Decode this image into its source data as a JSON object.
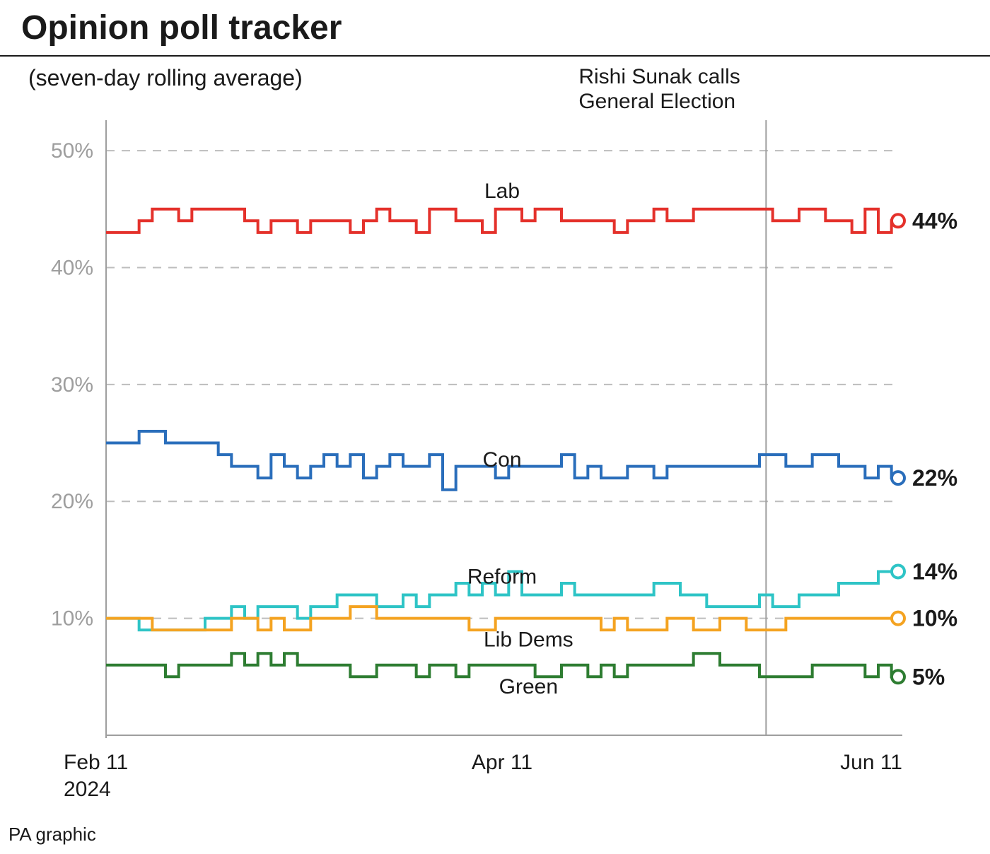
{
  "title": "Opinion poll tracker",
  "subtitle": "(seven-day rolling average)",
  "annotation": {
    "line1": "Rishi Sunak calls",
    "line2": "General Election",
    "x_index": 50
  },
  "source": "PA graphic",
  "chart": {
    "type": "line-step",
    "background_color": "#ffffff",
    "grid_color": "#bdbdbd",
    "axis_color": "#9e9e9e",
    "text_color": "#1a1a1a",
    "ylabel_color": "#9e9e9e",
    "yaxis": {
      "min": 0,
      "max": 52,
      "ticks": [
        10,
        20,
        30,
        40,
        50
      ],
      "tick_suffix": "%",
      "tick_fontsize": 30
    },
    "xaxis": {
      "n_points": 61,
      "labels": [
        {
          "index": 0,
          "line1": "Feb 11",
          "line2": "2024"
        },
        {
          "index": 30,
          "line1": "Apr 11",
          "line2": ""
        },
        {
          "index": 60,
          "line1": "Jun 11",
          "line2": ""
        }
      ],
      "label_fontsize": 30
    },
    "line_width": 4,
    "marker_radius": 9,
    "marker_stroke": 4,
    "series": [
      {
        "name": "Lab",
        "color": "#e4312b",
        "final_label": "44%",
        "label_at_index": 30,
        "values": [
          43,
          43,
          43,
          44,
          45,
          45,
          44,
          45,
          45,
          45,
          45,
          44,
          43,
          44,
          44,
          43,
          44,
          44,
          44,
          43,
          44,
          45,
          44,
          44,
          43,
          45,
          45,
          44,
          44,
          43,
          45,
          45,
          44,
          45,
          45,
          44,
          44,
          44,
          44,
          43,
          44,
          44,
          45,
          44,
          44,
          45,
          45,
          45,
          45,
          45,
          45,
          44,
          44,
          45,
          45,
          44,
          44,
          43,
          45,
          43,
          44
        ]
      },
      {
        "name": "Con",
        "color": "#2a6ebb",
        "final_label": "22%",
        "label_at_index": 30,
        "values": [
          25,
          25,
          25,
          26,
          26,
          25,
          25,
          25,
          25,
          24,
          23,
          23,
          22,
          24,
          23,
          22,
          23,
          24,
          23,
          24,
          22,
          23,
          24,
          23,
          23,
          24,
          21,
          23,
          23,
          23,
          22,
          23,
          23,
          23,
          23,
          24,
          22,
          23,
          22,
          22,
          23,
          23,
          22,
          23,
          23,
          23,
          23,
          23,
          23,
          23,
          24,
          24,
          23,
          23,
          24,
          24,
          23,
          23,
          22,
          23,
          22
        ]
      },
      {
        "name": "Reform",
        "color": "#2ec4c6",
        "final_label": "14%",
        "label_at_index": 30,
        "values": [
          10,
          10,
          10,
          9,
          9,
          9,
          9,
          9,
          10,
          10,
          11,
          10,
          11,
          11,
          11,
          10,
          11,
          11,
          12,
          12,
          12,
          11,
          11,
          12,
          11,
          12,
          12,
          13,
          12,
          13,
          12,
          14,
          12,
          12,
          12,
          13,
          12,
          12,
          12,
          12,
          12,
          12,
          13,
          13,
          12,
          12,
          11,
          11,
          11,
          11,
          12,
          11,
          11,
          12,
          12,
          12,
          13,
          13,
          13,
          14,
          14
        ]
      },
      {
        "name": "Lib Dems",
        "color": "#f4a321",
        "final_label": "10%",
        "label_at_index": 32,
        "label_below": true,
        "values": [
          10,
          10,
          10,
          10,
          9,
          9,
          9,
          9,
          9,
          9,
          10,
          10,
          9,
          10,
          9,
          9,
          10,
          10,
          10,
          11,
          11,
          10,
          10,
          10,
          10,
          10,
          10,
          10,
          9,
          9,
          10,
          10,
          10,
          10,
          10,
          10,
          10,
          10,
          9,
          10,
          9,
          9,
          9,
          10,
          10,
          9,
          9,
          10,
          10,
          9,
          9,
          9,
          10,
          10,
          10,
          10,
          10,
          10,
          10,
          10,
          10
        ]
      },
      {
        "name": "Green",
        "color": "#2e7d32",
        "final_label": "5%",
        "label_at_index": 32,
        "label_below": true,
        "values": [
          6,
          6,
          6,
          6,
          6,
          5,
          6,
          6,
          6,
          6,
          7,
          6,
          7,
          6,
          7,
          6,
          6,
          6,
          6,
          5,
          5,
          6,
          6,
          6,
          5,
          6,
          6,
          5,
          6,
          6,
          6,
          6,
          6,
          5,
          5,
          6,
          6,
          5,
          6,
          5,
          6,
          6,
          6,
          6,
          6,
          7,
          7,
          6,
          6,
          6,
          5,
          5,
          5,
          5,
          6,
          6,
          6,
          6,
          5,
          6,
          5
        ]
      }
    ]
  }
}
